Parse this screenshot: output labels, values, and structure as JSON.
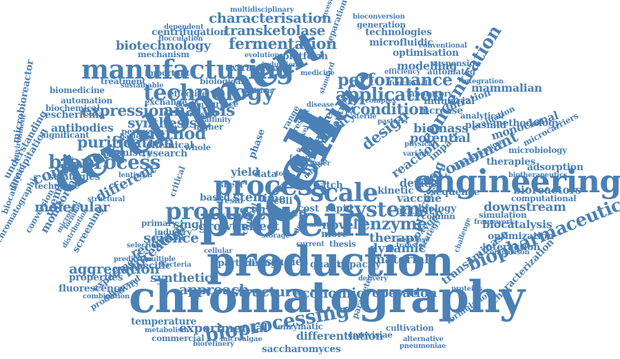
{
  "word_cloud": {
    "color": "#4a80b5",
    "words": [
      "development",
      "chromatography",
      "production",
      "protein",
      "engineering",
      "cell",
      "manufacturing",
      "culture",
      "process",
      "technology",
      "scale",
      "product",
      "system",
      "bioprocess",
      "concentration",
      "biopharmaceutical",
      "application",
      "analysis",
      "method",
      "performance",
      "bioprocessing",
      "expression",
      "purification",
      "fermentation",
      "design",
      "condition",
      "enzyme",
      "bioreactor",
      "characterisation",
      "transketolase",
      "biotechnology",
      "continuous",
      "molecular",
      "different",
      "science",
      "synthesis",
      "experimental",
      "economic",
      "structure",
      "approach",
      "aggregation",
      "recombinant",
      "downstream",
      "processing",
      "dynamic",
      "synthetic",
      "recovery",
      "reaction",
      "biomass",
      "potential",
      "therapy",
      "operation",
      "material",
      "transaminase",
      "mammalian",
      "modelling",
      "optimisation",
      "industrial",
      "monoclonal",
      "biocatalysis",
      "optimization",
      "interaction",
      "characterization",
      "vaccine",
      "activity",
      "kinetic",
      "bioreactors",
      "antibodies",
      "escherichia",
      "membrane",
      "monitoring",
      "strategies",
      "centrifugation",
      "microfluidic",
      "technologies",
      "generation",
      "bioconversion",
      "multidisciplinary",
      "mechanism",
      "platform",
      "evolution",
      "extraction",
      "biological",
      "automation",
      "biomedicine",
      "microbioreactor",
      "temperature",
      "differentiation",
      "saccharomyces",
      "cultivation",
      "cerevisiae",
      "alternative",
      "pneumoniae",
      "fluorescence",
      "properties",
      "experiment",
      "specific",
      "productivity",
      "observed",
      "combination",
      "commercial",
      "metabolism",
      "biorefinery",
      "microalgae",
      "enzymatic",
      "quality",
      "capacity",
      "studies",
      "mixing",
      "particle",
      "stability",
      "human",
      "model",
      "control",
      "stem",
      "time",
      "vector",
      "based",
      "growth",
      "effect",
      "single",
      "primary",
      "industry",
      "novel",
      "step",
      "yield",
      "data",
      "phase",
      "rate",
      "batch",
      "cost",
      "rapid",
      "more",
      "thesis",
      "device",
      "impact",
      "biology",
      "column",
      "sequence",
      "simulation",
      "computational",
      "adsorption",
      "therapies",
      "microbiology",
      "microcarriers",
      "plasmid",
      "analytical",
      "methodology",
      "evaluation",
      "filtration",
      "increase",
      "laboratory",
      "complex",
      "pastoris",
      "suspension",
      "automated",
      "efficiency",
      "integration",
      "framework",
      "comparison",
      "challenge",
      "oxygen",
      "strategy",
      "response",
      "transfer",
      "delivery",
      "clinical",
      "chemical",
      "chemistry",
      "research",
      "perfusion",
      "bacterial",
      "significant",
      "biochemical",
      "sustainable",
      "exchange",
      "effective",
      "surface",
      "pressure",
      "affinity",
      "higher",
      "whole",
      "important",
      "treatment",
      "dependent",
      "flocculation",
      "conventional",
      "precipitation",
      "biocatalytic",
      "technique",
      "understanding",
      "structural",
      "lentiviral",
      "environment",
      "conversion",
      "microbial",
      "formulation",
      "screening",
      "prediction",
      "selection",
      "distribution",
      "available",
      "bacteria",
      "multiple",
      "parameter",
      "current",
      "density",
      "standard",
      "functional",
      "medicine",
      "decision",
      "induction",
      "disease",
      "domain",
      "factor",
      "critical",
      "carbon",
      "level",
      "number",
      "active",
      "future",
      "order",
      "range",
      "result",
      "tool",
      "shear",
      "resin",
      "coli",
      "investigation",
      "separation",
      "chromatographic",
      "biotherapeutics",
      "intensification",
      "cellular",
      "physical",
      "proteins",
      "variant",
      "forming",
      "sterile",
      "storage"
    ]
  }
}
